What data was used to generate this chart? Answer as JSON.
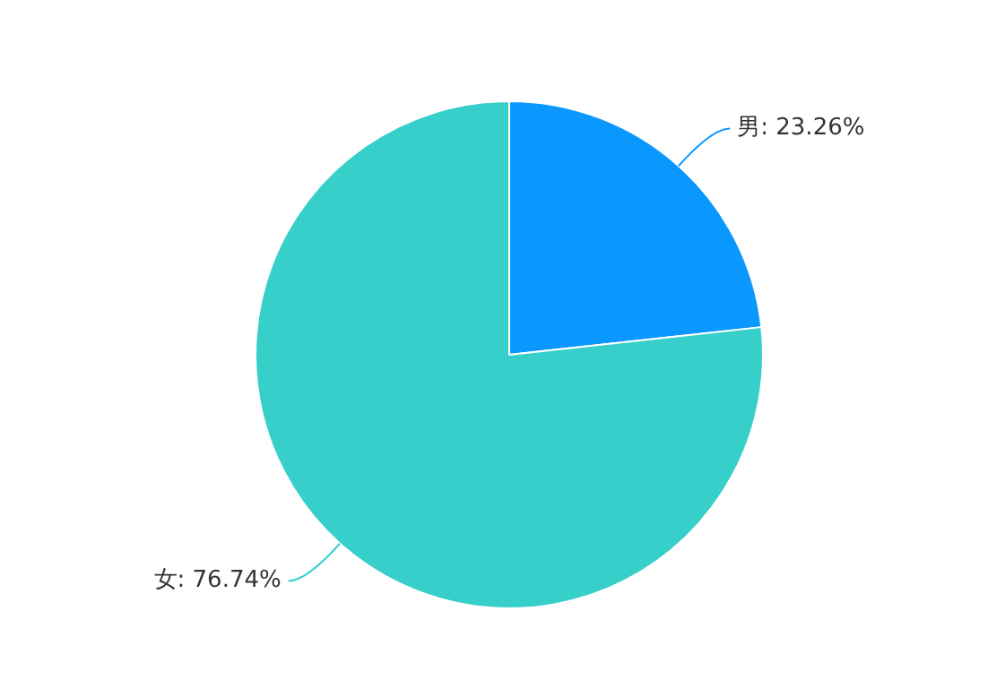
{
  "chart_data": {
    "type": "pie",
    "categories": [
      "男",
      "女"
    ],
    "values": [
      23.26,
      76.74
    ],
    "value_labels": [
      "23.26%",
      "76.74%"
    ],
    "colors": [
      "#0a98ff",
      "#37cfc9"
    ],
    "legend": false
  }
}
